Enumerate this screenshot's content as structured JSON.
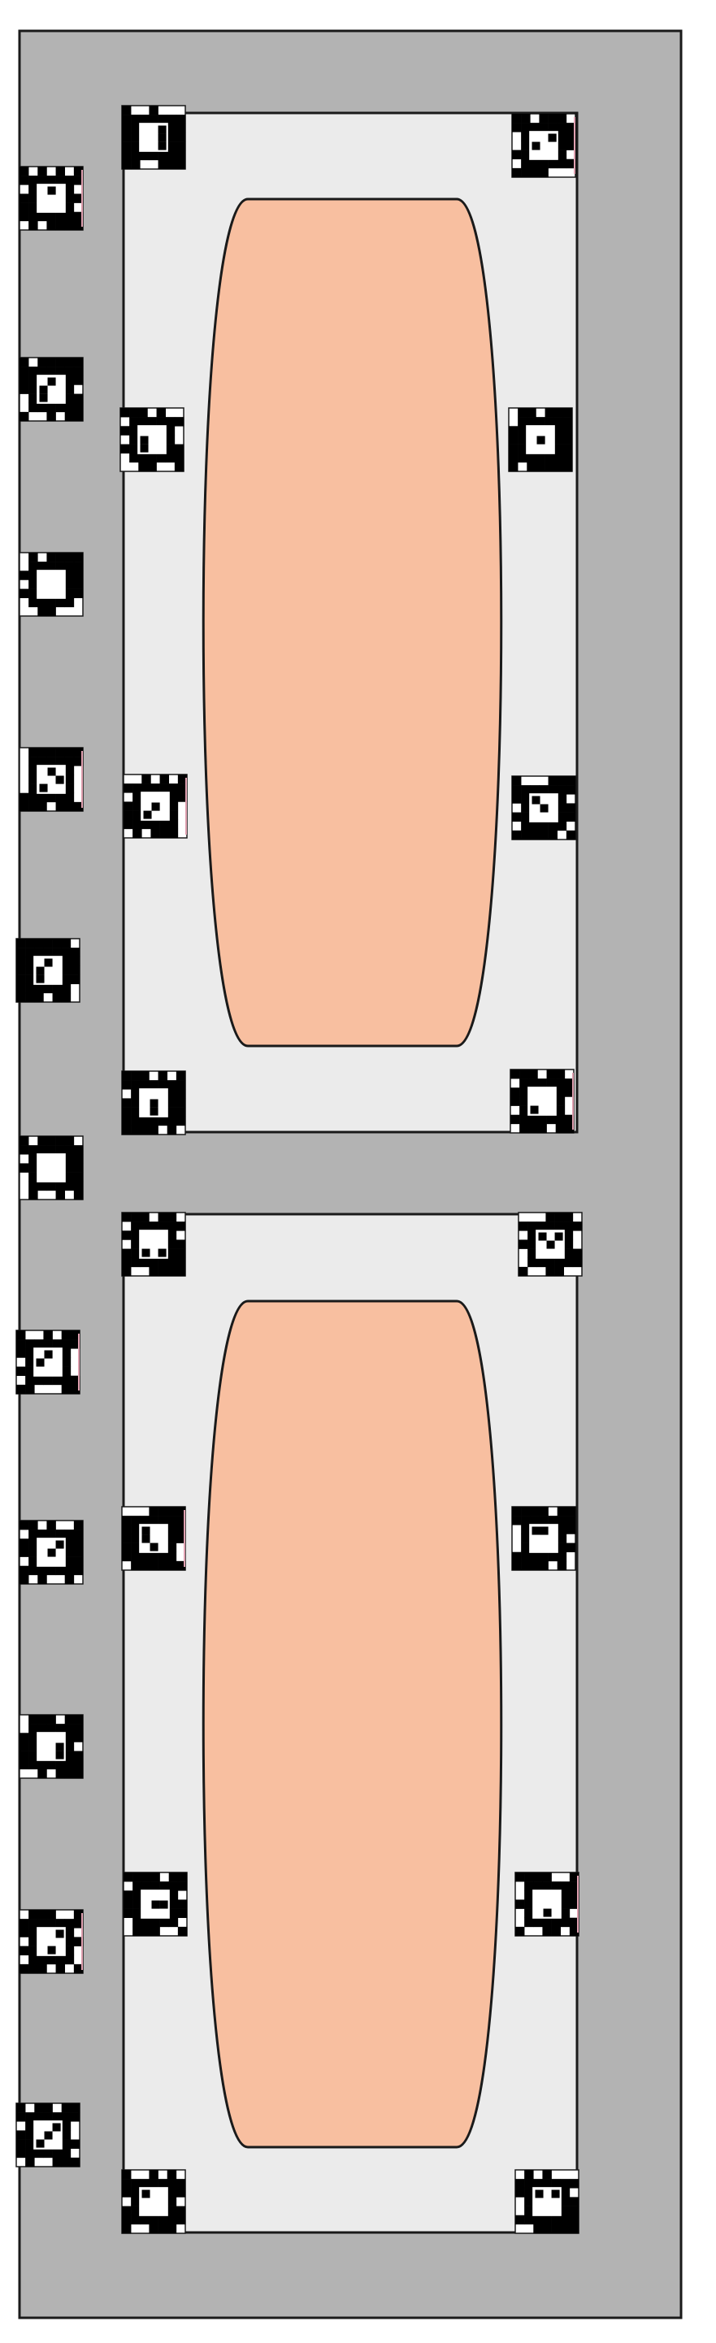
{
  "colors": {
    "background": "#ffffff",
    "board": "#b3b3b3",
    "panel": "#ebebeb",
    "pill": "#f8bfa0",
    "stroke": "#1a1a1a",
    "marker_black": "#000000",
    "marker_white": "#ffffff",
    "marker_accent": "#e0a0b0"
  },
  "diagram": {
    "board_count": 1,
    "panel_count": 2,
    "pill_count": 2,
    "marker_count": 27,
    "marker_icon": "aruco-marker-icon"
  }
}
